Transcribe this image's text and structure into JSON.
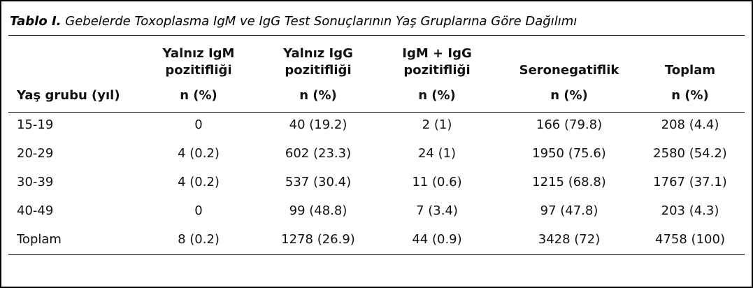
{
  "title": {
    "label": "Tablo I.",
    "text": "Gebelerde Toxoplasma IgM ve IgG Test Sonuçlarının Yaş Gruplarına Göre Dağılımı"
  },
  "table": {
    "header": [
      {
        "lines": [],
        "unit": "Yaş grubu (yıl)"
      },
      {
        "lines": [
          "Yalnız IgM",
          "pozitifliği"
        ],
        "unit": "n (%)"
      },
      {
        "lines": [
          "Yalnız IgG",
          "pozitifliği"
        ],
        "unit": "n (%)"
      },
      {
        "lines": [
          "IgM + IgG",
          "pozitifliği"
        ],
        "unit": "n (%)"
      },
      {
        "lines": [
          "Seronegatiflik"
        ],
        "unit": "n (%)"
      },
      {
        "lines": [
          "Toplam"
        ],
        "unit": "n (%)"
      }
    ],
    "rows": [
      [
        "15-19",
        "0",
        "40 (19.2)",
        "2 (1)",
        "166 (79.8)",
        "208 (4.4)"
      ],
      [
        "20-29",
        "4 (0.2)",
        "602 (23.3)",
        "24 (1)",
        "1950 (75.6)",
        "2580 (54.2)"
      ],
      [
        "30-39",
        "4 (0.2)",
        "537 (30.4)",
        "11 (0.6)",
        "1215 (68.8)",
        "1767 (37.1)"
      ],
      [
        "40-49",
        "0",
        "99 (48.8)",
        "7 (3.4)",
        "97 (47.8)",
        "203 (4.3)"
      ],
      [
        "Toplam",
        "8 (0.2)",
        "1278 (26.9)",
        "44 (0.9)",
        "3428 (72)",
        "4758 (100)"
      ]
    ]
  }
}
